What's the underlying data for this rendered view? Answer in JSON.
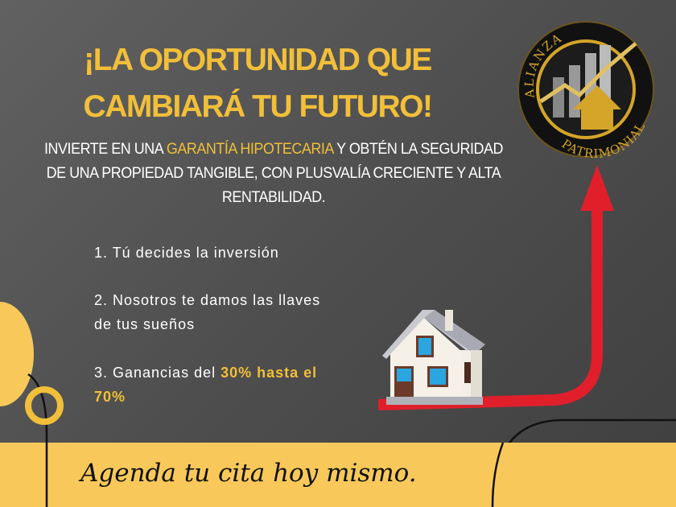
{
  "title": {
    "line1": "¡LA OPORTUNIDAD QUE",
    "line2": "CAMBIARÁ TU FUTURO!"
  },
  "subtitle": {
    "part1": "INVIERTE EN UNA ",
    "highlight": "GARANTÍA HIPOTECARIA",
    "part2": " Y OBTÉN LA SEGURIDAD DE UNA PROPIEDAD TANGIBLE, CON PLUSVALÍA CRECIENTE Y ALTA RENTABILIDAD."
  },
  "steps": [
    {
      "text": "1. Tú decides la inversión"
    },
    {
      "text": "2. Nosotros te damos las llaves de tus sueños"
    },
    {
      "text": "3. Ganancias del ",
      "highlight": "30% hasta el 70%"
    }
  ],
  "logo": {
    "top_text": "ALIANZA",
    "bottom_text": "PATRIMONIAL"
  },
  "cta": "Agenda tu cita hoy mismo.",
  "colors": {
    "accent": "#f2bf3a",
    "band": "#f8c95a",
    "arrow": "#e01f2b"
  }
}
